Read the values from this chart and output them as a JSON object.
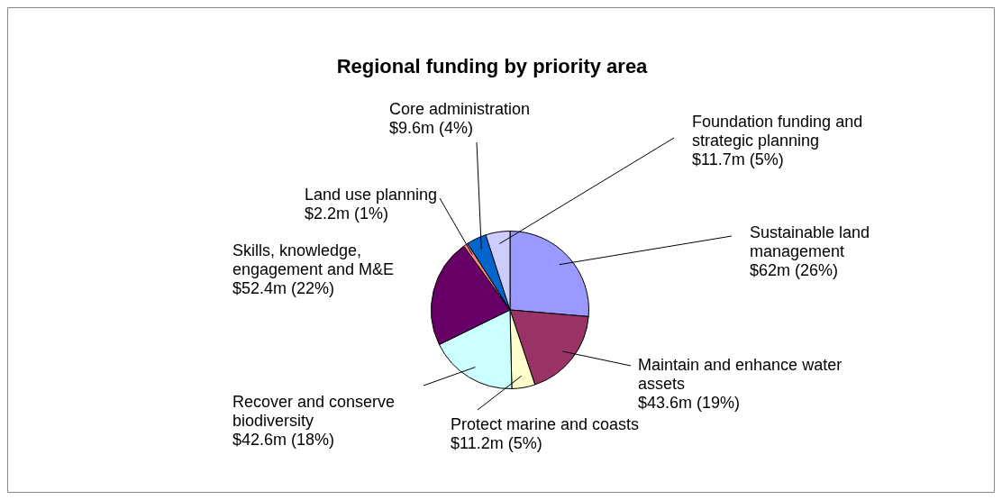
{
  "chart_data": {
    "type": "pie",
    "title": "Regional funding by priority area",
    "categories": [
      "Sustainable land management",
      "Maintain and enhance water assets",
      "Protect marine and coasts",
      "Recover and conserve biodiversity",
      "Skills, knowledge, engagement and M&E",
      "Land use planning",
      "Core administration",
      "Foundation funding and strategic planning"
    ],
    "values": [
      62000000,
      43600000,
      11200000,
      42600000,
      52400000,
      2200000,
      9600000,
      11700000
    ],
    "colors": [
      "#9999ff",
      "#993366",
      "#ffffcc",
      "#ccffff",
      "#660066",
      "#ff8080",
      "#0066cc",
      "#ccccff"
    ],
    "value_labels": [
      "$62m (26%)",
      "$43.6m (19%)",
      "$11.2m (5%)",
      "$42.6m (18%)",
      "$52.4m (22%)",
      "$2.2m (1%)",
      "$9.6m (4%)",
      "$11.7m (5%)"
    ],
    "legend": false
  }
}
